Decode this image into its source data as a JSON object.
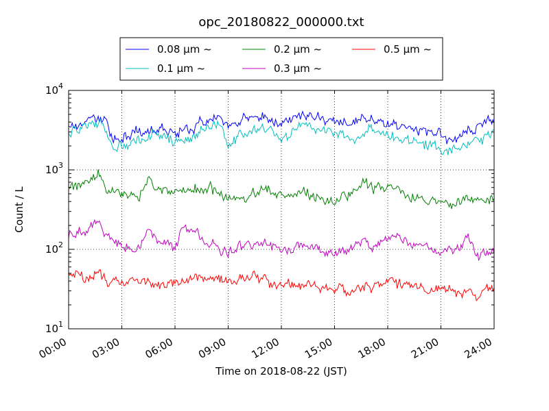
{
  "chart_data": {
    "type": "line",
    "title": "opc_20180822_000000.txt",
    "xlabel": "Time on 2018-08-22 (JST)",
    "ylabel": "Count / L",
    "yscale": "log",
    "ylim": [
      10,
      10000
    ],
    "xlim": [
      "00:00",
      "24:00"
    ],
    "x_ticks": [
      "00:00",
      "03:00",
      "06:00",
      "09:00",
      "12:00",
      "15:00",
      "18:00",
      "21:00",
      "24:00"
    ],
    "y_ticks": [
      {
        "base": "10",
        "exp": "1"
      },
      {
        "base": "10",
        "exp": "2"
      },
      {
        "base": "10",
        "exp": "3"
      },
      {
        "base": "10",
        "exp": "4"
      }
    ],
    "grid": true,
    "legend_position": "top",
    "legend_columns": 3,
    "series": [
      {
        "name": "0.08 μm ~",
        "color": "#0000ff",
        "x": [
          "00:00",
          "01:00",
          "02:00",
          "02:30",
          "03:00",
          "04:00",
          "05:00",
          "06:00",
          "07:00",
          "08:00",
          "08:30",
          "09:00",
          "10:00",
          "11:00",
          "12:00",
          "12:30",
          "13:00",
          "14:00",
          "15:00",
          "16:00",
          "17:00",
          "18:00",
          "19:00",
          "20:00",
          "21:00",
          "21:30",
          "22:00",
          "23:00",
          "24:00"
        ],
        "values": [
          3500,
          4200,
          4400,
          2400,
          2600,
          2900,
          3400,
          2800,
          3200,
          4800,
          4500,
          3200,
          4400,
          4300,
          3900,
          4100,
          5000,
          4600,
          4200,
          4000,
          4400,
          3600,
          3500,
          3100,
          2800,
          2400,
          2600,
          3400,
          4300
        ]
      },
      {
        "name": "0.1 μm ~",
        "color": "#00bfbf",
        "x": [
          "00:00",
          "01:00",
          "02:00",
          "02:30",
          "03:00",
          "04:00",
          "05:00",
          "06:00",
          "07:00",
          "08:00",
          "08:30",
          "09:00",
          "10:00",
          "11:00",
          "12:00",
          "12:30",
          "13:00",
          "14:00",
          "15:00",
          "16:00",
          "17:00",
          "18:00",
          "19:00",
          "20:00",
          "21:00",
          "21:30",
          "22:00",
          "23:00",
          "24:00"
        ],
        "values": [
          2800,
          3600,
          3900,
          1800,
          2000,
          2300,
          2800,
          2200,
          2600,
          3800,
          3500,
          1900,
          3100,
          3200,
          2600,
          2900,
          3700,
          3300,
          2900,
          2600,
          3300,
          2700,
          2500,
          2100,
          1800,
          1700,
          2000,
          2400,
          2900
        ]
      },
      {
        "name": "0.2 μm ~",
        "color": "#008000",
        "x": [
          "00:00",
          "01:00",
          "01:40",
          "02:00",
          "02:30",
          "03:00",
          "04:00",
          "04:30",
          "05:00",
          "06:00",
          "07:00",
          "08:00",
          "08:30",
          "09:00",
          "10:00",
          "11:00",
          "12:00",
          "13:00",
          "14:00",
          "15:00",
          "16:00",
          "16:40",
          "17:00",
          "18:00",
          "19:00",
          "20:00",
          "21:00",
          "22:00",
          "23:00",
          "24:00"
        ],
        "values": [
          600,
          680,
          950,
          620,
          520,
          480,
          470,
          800,
          560,
          520,
          620,
          580,
          520,
          430,
          430,
          570,
          470,
          510,
          450,
          400,
          470,
          760,
          620,
          590,
          510,
          410,
          380,
          420,
          390,
          420
        ]
      },
      {
        "name": "0.3 μm ~",
        "color": "#bf00bf",
        "x": [
          "00:00",
          "01:00",
          "01:40",
          "02:00",
          "02:30",
          "03:00",
          "04:00",
          "04:30",
          "05:00",
          "06:00",
          "06:30",
          "07:00",
          "08:00",
          "08:30",
          "09:00",
          "10:00",
          "11:00",
          "12:00",
          "13:00",
          "14:00",
          "15:00",
          "16:00",
          "16:40",
          "17:00",
          "18:00",
          "19:00",
          "20:00",
          "21:00",
          "22:00",
          "22:30",
          "23:00",
          "24:00"
        ],
        "values": [
          160,
          170,
          280,
          150,
          120,
          110,
          105,
          200,
          120,
          105,
          190,
          160,
          120,
          100,
          95,
          110,
          115,
          100,
          110,
          100,
          90,
          95,
          140,
          110,
          140,
          120,
          110,
          95,
          100,
          150,
          85,
          95
        ]
      },
      {
        "name": "0.5 μm ~",
        "color": "#ff0000",
        "x": [
          "00:00",
          "01:00",
          "01:40",
          "02:00",
          "02:30",
          "03:00",
          "04:00",
          "05:00",
          "06:00",
          "07:00",
          "08:00",
          "09:00",
          "10:00",
          "11:00",
          "12:00",
          "13:00",
          "14:00",
          "15:00",
          "16:00",
          "17:00",
          "18:00",
          "19:00",
          "20:00",
          "21:00",
          "22:00",
          "23:00",
          "24:00"
        ],
        "values": [
          46,
          44,
          55,
          42,
          40,
          39,
          40,
          38,
          37,
          40,
          41,
          38,
          46,
          44,
          33,
          36,
          35,
          31,
          30,
          34,
          40,
          36,
          32,
          30,
          30,
          25,
          38
        ]
      }
    ]
  }
}
